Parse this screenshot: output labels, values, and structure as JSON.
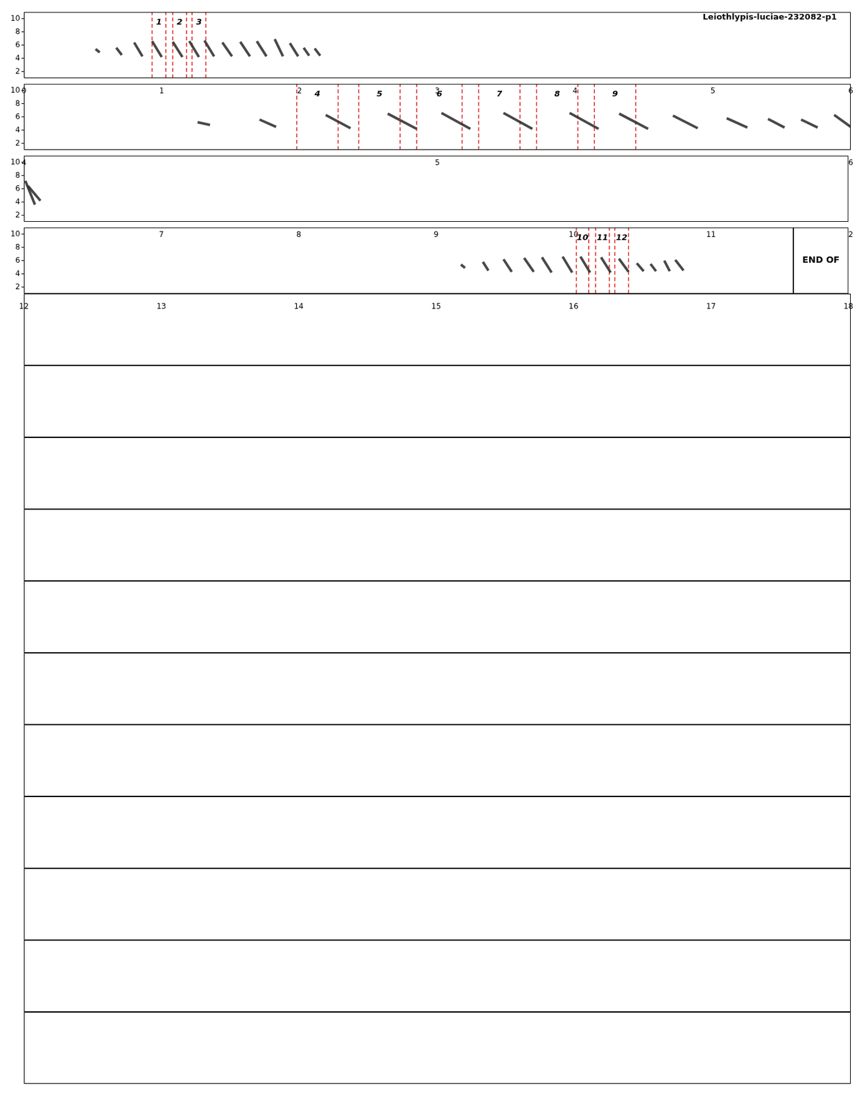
{
  "chart_data": [
    {
      "type": "line",
      "title": "Leiothlypis-luciae-232082-p1",
      "xlim": [
        0,
        6
      ],
      "xticks": [
        0,
        1,
        2,
        3,
        4,
        5,
        6
      ],
      "ylim": [
        1,
        11
      ],
      "yticks": [
        2,
        4,
        6,
        8,
        10
      ],
      "notes": [
        [
          0.52,
          0.55,
          5.4,
          4.9
        ],
        [
          0.67,
          0.71,
          5.6,
          4.5
        ],
        [
          0.8,
          0.86,
          6.4,
          4.3
        ],
        [
          0.93,
          1.0,
          6.6,
          4.2
        ],
        [
          1.08,
          1.15,
          6.5,
          4.2
        ],
        [
          1.2,
          1.27,
          6.6,
          4.2
        ],
        [
          1.31,
          1.38,
          6.7,
          4.3
        ],
        [
          1.44,
          1.51,
          6.4,
          4.3
        ],
        [
          1.57,
          1.64,
          6.5,
          4.3
        ],
        [
          1.69,
          1.76,
          6.6,
          4.3
        ],
        [
          1.82,
          1.88,
          6.9,
          4.3
        ],
        [
          1.93,
          1.99,
          6.3,
          4.3
        ],
        [
          2.03,
          2.07,
          5.6,
          4.4
        ],
        [
          2.11,
          2.15,
          5.5,
          4.4
        ]
      ],
      "segments": [
        {
          "label": "1",
          "start": 0.93,
          "end": 1.03
        },
        {
          "label": "2",
          "start": 1.08,
          "end": 1.18
        },
        {
          "label": "3",
          "start": 1.22,
          "end": 1.32
        }
      ]
    },
    {
      "type": "line",
      "xlim": [
        4,
        6
      ],
      "xticks": [
        4,
        5,
        6
      ],
      "ylim": [
        1,
        11
      ],
      "yticks": [
        2,
        4,
        6,
        8,
        10
      ],
      "notes": [
        [
          4.42,
          4.45,
          5.2,
          4.8
        ],
        [
          4.57,
          4.61,
          5.6,
          4.5
        ],
        [
          4.73,
          4.79,
          6.3,
          4.3
        ],
        [
          4.88,
          4.95,
          6.5,
          4.2
        ],
        [
          5.01,
          5.08,
          6.6,
          4.2
        ],
        [
          5.16,
          5.23,
          6.6,
          4.2
        ],
        [
          5.32,
          5.39,
          6.6,
          4.2
        ],
        [
          5.44,
          5.51,
          6.5,
          4.2
        ],
        [
          5.57,
          5.63,
          6.2,
          4.3
        ],
        [
          5.7,
          5.75,
          5.8,
          4.4
        ],
        [
          5.8,
          5.84,
          5.7,
          4.4
        ],
        [
          5.88,
          5.92,
          5.6,
          4.4
        ],
        [
          5.96,
          6.0,
          6.3,
          4.5
        ]
      ],
      "segments": [
        {
          "label": "4",
          "start": 4.66,
          "end": 4.76
        },
        {
          "label": "5",
          "start": 4.81,
          "end": 4.91
        },
        {
          "label": "6",
          "start": 4.95,
          "end": 5.06
        },
        {
          "label": "7",
          "start": 5.1,
          "end": 5.2
        },
        {
          "label": "8",
          "start": 5.24,
          "end": 5.34
        },
        {
          "label": "9",
          "start": 5.38,
          "end": 5.48
        }
      ]
    },
    {
      "type": "line",
      "xlim": [
        6,
        12
      ],
      "xticks": [
        7,
        8,
        9,
        10,
        11,
        12
      ],
      "ylim": [
        1,
        11
      ],
      "yticks": [
        2,
        4,
        6,
        8,
        10
      ],
      "notes": [
        [
          6.01,
          6.08,
          7.2,
          3.6
        ],
        [
          6.03,
          6.12,
          6.4,
          4.2
        ]
      ],
      "segments": []
    },
    {
      "type": "line",
      "xlim": [
        12,
        18
      ],
      "xticks": [
        12,
        13,
        14,
        15,
        16,
        17,
        18
      ],
      "ylim": [
        1,
        11
      ],
      "yticks": [
        2,
        4,
        6,
        8,
        10
      ],
      "notes": [
        [
          15.18,
          15.21,
          5.4,
          4.9
        ],
        [
          15.34,
          15.38,
          5.8,
          4.5
        ],
        [
          15.49,
          15.55,
          6.2,
          4.3
        ],
        [
          15.64,
          15.71,
          6.4,
          4.3
        ],
        [
          15.77,
          15.84,
          6.5,
          4.2
        ],
        [
          15.92,
          15.99,
          6.6,
          4.2
        ],
        [
          16.05,
          16.12,
          6.6,
          4.2
        ],
        [
          16.2,
          16.27,
          6.5,
          4.2
        ],
        [
          16.33,
          16.4,
          6.3,
          4.3
        ],
        [
          16.46,
          16.51,
          5.6,
          4.4
        ],
        [
          16.56,
          16.6,
          5.5,
          4.4
        ],
        [
          16.66,
          16.7,
          6.0,
          4.4
        ],
        [
          16.74,
          16.8,
          6.1,
          4.5
        ]
      ],
      "segments": [
        {
          "label": "10",
          "start": 16.02,
          "end": 16.11
        },
        {
          "label": "11",
          "start": 16.16,
          "end": 16.26
        },
        {
          "label": "12",
          "start": 16.3,
          "end": 16.4
        }
      ],
      "annotations": [
        {
          "x": 17.6,
          "text": "END OF"
        }
      ]
    },
    {
      "type": "blank"
    },
    {
      "type": "blank"
    },
    {
      "type": "blank"
    },
    {
      "type": "blank"
    },
    {
      "type": "blank"
    },
    {
      "type": "blank"
    },
    {
      "type": "blank"
    },
    {
      "type": "blank"
    },
    {
      "type": "blank"
    },
    {
      "type": "blank"
    },
    {
      "type": "blank"
    }
  ]
}
